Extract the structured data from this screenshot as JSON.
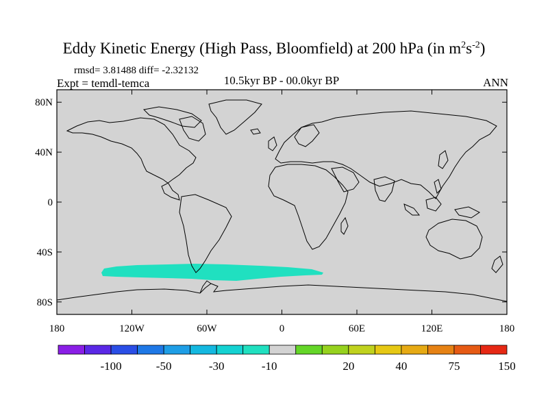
{
  "title": {
    "main": "Eddy Kinetic Energy (High Pass, Bloomfield) at 200 hPa (in m",
    "exp1": "2",
    "s": "s",
    "exp2": "-2",
    "close": ")"
  },
  "stats": "rmsd= 3.81488 diff= -2.32132",
  "experiment": "Expt = temdl-temca",
  "period": "10.5kyr BP - 00.0kyr BP",
  "season": "ANN",
  "map": {
    "lat_labels": [
      "80N",
      "40N",
      "0",
      "40S",
      "80S"
    ],
    "lat_values": [
      80,
      40,
      0,
      -40,
      -80
    ],
    "lon_labels": [
      "180",
      "120W",
      "60W",
      "0",
      "60E",
      "120E",
      "180"
    ],
    "lon_values": [
      -180,
      -120,
      -60,
      0,
      60,
      120,
      180
    ],
    "background_color": "#d3d3d3",
    "anomaly_region": {
      "color": "#20e0c0",
      "value_band": "-10 to -30"
    }
  },
  "colorbar": {
    "colors": [
      "#8a1ee6",
      "#5a28e6",
      "#2a4ee6",
      "#1e78e6",
      "#1e9ee6",
      "#14b8e0",
      "#14d2d2",
      "#20e0c0",
      "#d3d3d3",
      "#64d628",
      "#96d21e",
      "#c0d21e",
      "#e6c814",
      "#e6aa14",
      "#e68214",
      "#e65a14",
      "#e62814"
    ],
    "labels": [
      "-100",
      "-50",
      "-30",
      "-10",
      "20",
      "40",
      "75",
      "150"
    ]
  }
}
